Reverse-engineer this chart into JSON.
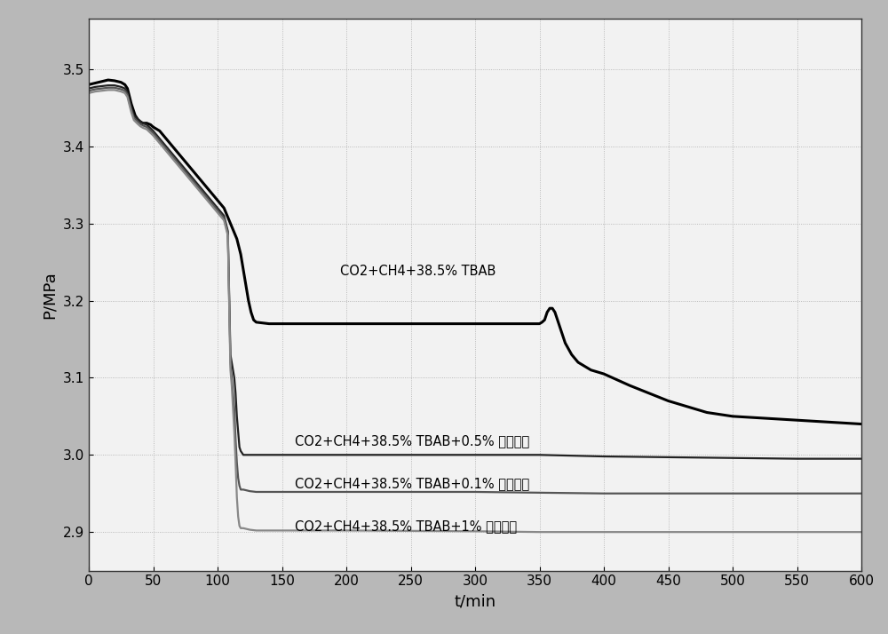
{
  "title": "",
  "xlabel": "t/min",
  "ylabel": "P/MPa",
  "xlim": [
    0,
    600
  ],
  "ylim": [
    2.85,
    3.565
  ],
  "yticks": [
    2.9,
    3.0,
    3.1,
    3.2,
    3.3,
    3.4,
    3.5
  ],
  "xticks": [
    0,
    50,
    100,
    150,
    200,
    250,
    300,
    350,
    400,
    450,
    500,
    550,
    600
  ],
  "fig_bg_color": "#c8c8c8",
  "plot_bg_color": "#f0f0f0",
  "series": [
    {
      "label": "CO2+CH4+38.5% TBAB",
      "color": "#000000",
      "linewidth": 2.2,
      "annotation": "CO2+CH4+38.5% TBAB",
      "ann_x": 195,
      "ann_y": 3.238,
      "points": [
        [
          0,
          3.48
        ],
        [
          5,
          3.482
        ],
        [
          10,
          3.484
        ],
        [
          15,
          3.486
        ],
        [
          20,
          3.485
        ],
        [
          25,
          3.483
        ],
        [
          28,
          3.48
        ],
        [
          30,
          3.475
        ],
        [
          33,
          3.455
        ],
        [
          35,
          3.445
        ],
        [
          36,
          3.44
        ],
        [
          38,
          3.435
        ],
        [
          40,
          3.432
        ],
        [
          42,
          3.43
        ],
        [
          43,
          3.43
        ],
        [
          45,
          3.43
        ],
        [
          48,
          3.428
        ],
        [
          50,
          3.425
        ],
        [
          55,
          3.42
        ],
        [
          60,
          3.41
        ],
        [
          65,
          3.4
        ],
        [
          70,
          3.39
        ],
        [
          75,
          3.38
        ],
        [
          80,
          3.37
        ],
        [
          85,
          3.36
        ],
        [
          90,
          3.35
        ],
        [
          95,
          3.34
        ],
        [
          100,
          3.33
        ],
        [
          105,
          3.32
        ],
        [
          110,
          3.3
        ],
        [
          115,
          3.28
        ],
        [
          118,
          3.26
        ],
        [
          120,
          3.24
        ],
        [
          122,
          3.22
        ],
        [
          124,
          3.2
        ],
        [
          126,
          3.185
        ],
        [
          128,
          3.175
        ],
        [
          130,
          3.172
        ],
        [
          140,
          3.17
        ],
        [
          200,
          3.17
        ],
        [
          300,
          3.17
        ],
        [
          350,
          3.17
        ],
        [
          352,
          3.172
        ],
        [
          354,
          3.175
        ],
        [
          356,
          3.185
        ],
        [
          358,
          3.19
        ],
        [
          360,
          3.19
        ],
        [
          362,
          3.185
        ],
        [
          364,
          3.175
        ],
        [
          366,
          3.165
        ],
        [
          368,
          3.155
        ],
        [
          370,
          3.145
        ],
        [
          375,
          3.13
        ],
        [
          380,
          3.12
        ],
        [
          385,
          3.115
        ],
        [
          390,
          3.11
        ],
        [
          400,
          3.105
        ],
        [
          420,
          3.09
        ],
        [
          450,
          3.07
        ],
        [
          480,
          3.055
        ],
        [
          500,
          3.05
        ],
        [
          550,
          3.045
        ],
        [
          600,
          3.04
        ]
      ]
    },
    {
      "label": "CO2+CH4+38.5% TBAB+0.5% 碳纳米管",
      "color": "#222222",
      "linewidth": 1.6,
      "annotation": "CO2+CH4+38.5% TBAB+0.5% 碳纳米管",
      "ann_x": 160,
      "ann_y": 3.018,
      "points": [
        [
          0,
          3.475
        ],
        [
          5,
          3.477
        ],
        [
          10,
          3.478
        ],
        [
          15,
          3.479
        ],
        [
          20,
          3.479
        ],
        [
          25,
          3.477
        ],
        [
          28,
          3.475
        ],
        [
          30,
          3.47
        ],
        [
          33,
          3.45
        ],
        [
          35,
          3.44
        ],
        [
          38,
          3.435
        ],
        [
          40,
          3.432
        ],
        [
          42,
          3.43
        ],
        [
          45,
          3.428
        ],
        [
          50,
          3.42
        ],
        [
          55,
          3.41
        ],
        [
          60,
          3.4
        ],
        [
          65,
          3.39
        ],
        [
          70,
          3.38
        ],
        [
          75,
          3.37
        ],
        [
          80,
          3.36
        ],
        [
          85,
          3.35
        ],
        [
          90,
          3.34
        ],
        [
          95,
          3.33
        ],
        [
          100,
          3.32
        ],
        [
          105,
          3.31
        ],
        [
          108,
          3.29
        ],
        [
          110,
          3.13
        ],
        [
          111,
          3.12
        ],
        [
          112,
          3.11
        ],
        [
          113,
          3.1
        ],
        [
          114,
          3.08
        ],
        [
          115,
          3.05
        ],
        [
          116,
          3.03
        ],
        [
          117,
          3.01
        ],
        [
          118,
          3.005
        ],
        [
          120,
          3.0
        ],
        [
          125,
          3.0
        ],
        [
          130,
          3.0
        ],
        [
          200,
          3.0
        ],
        [
          300,
          3.0
        ],
        [
          350,
          3.0
        ],
        [
          400,
          2.998
        ],
        [
          450,
          2.997
        ],
        [
          500,
          2.996
        ],
        [
          550,
          2.995
        ],
        [
          600,
          2.995
        ]
      ]
    },
    {
      "label": "CO2+CH4+38.5% TBAB+0.1% 碳纳米管",
      "color": "#555555",
      "linewidth": 1.6,
      "annotation": "CO2+CH4+38.5% TBAB+0.1% 碳纳米管",
      "ann_x": 160,
      "ann_y": 2.963,
      "points": [
        [
          0,
          3.472
        ],
        [
          5,
          3.474
        ],
        [
          10,
          3.475
        ],
        [
          15,
          3.476
        ],
        [
          20,
          3.476
        ],
        [
          25,
          3.474
        ],
        [
          28,
          3.472
        ],
        [
          30,
          3.467
        ],
        [
          33,
          3.447
        ],
        [
          35,
          3.437
        ],
        [
          38,
          3.432
        ],
        [
          40,
          3.429
        ],
        [
          42,
          3.427
        ],
        [
          45,
          3.425
        ],
        [
          50,
          3.417
        ],
        [
          55,
          3.407
        ],
        [
          60,
          3.397
        ],
        [
          65,
          3.387
        ],
        [
          70,
          3.377
        ],
        [
          75,
          3.367
        ],
        [
          80,
          3.357
        ],
        [
          85,
          3.347
        ],
        [
          90,
          3.337
        ],
        [
          95,
          3.327
        ],
        [
          100,
          3.317
        ],
        [
          105,
          3.307
        ],
        [
          108,
          3.287
        ],
        [
          110,
          3.12
        ],
        [
          111,
          3.1
        ],
        [
          112,
          3.08
        ],
        [
          113,
          3.06
        ],
        [
          114,
          3.02
        ],
        [
          115,
          2.99
        ],
        [
          116,
          2.97
        ],
        [
          117,
          2.96
        ],
        [
          118,
          2.955
        ],
        [
          120,
          2.955
        ],
        [
          125,
          2.953
        ],
        [
          130,
          2.952
        ],
        [
          200,
          2.952
        ],
        [
          300,
          2.952
        ],
        [
          350,
          2.951
        ],
        [
          400,
          2.95
        ],
        [
          450,
          2.95
        ],
        [
          500,
          2.95
        ],
        [
          550,
          2.95
        ],
        [
          600,
          2.95
        ]
      ]
    },
    {
      "label": "CO2+CH4+38.5% TBAB+1% 碳纳米管",
      "color": "#888888",
      "linewidth": 1.6,
      "annotation": "CO2+CH4+38.5% TBAB+1% 碳纳米管",
      "ann_x": 160,
      "ann_y": 2.908,
      "points": [
        [
          0,
          3.469
        ],
        [
          5,
          3.471
        ],
        [
          10,
          3.472
        ],
        [
          15,
          3.473
        ],
        [
          20,
          3.473
        ],
        [
          25,
          3.471
        ],
        [
          28,
          3.469
        ],
        [
          30,
          3.464
        ],
        [
          33,
          3.444
        ],
        [
          35,
          3.434
        ],
        [
          38,
          3.429
        ],
        [
          40,
          3.426
        ],
        [
          42,
          3.424
        ],
        [
          45,
          3.422
        ],
        [
          50,
          3.414
        ],
        [
          55,
          3.404
        ],
        [
          60,
          3.394
        ],
        [
          65,
          3.384
        ],
        [
          70,
          3.374
        ],
        [
          75,
          3.364
        ],
        [
          80,
          3.354
        ],
        [
          85,
          3.344
        ],
        [
          90,
          3.334
        ],
        [
          95,
          3.324
        ],
        [
          100,
          3.314
        ],
        [
          105,
          3.304
        ],
        [
          108,
          3.284
        ],
        [
          110,
          3.11
        ],
        [
          111,
          3.09
        ],
        [
          112,
          3.06
        ],
        [
          113,
          3.03
        ],
        [
          114,
          2.99
        ],
        [
          115,
          2.945
        ],
        [
          116,
          2.92
        ],
        [
          117,
          2.908
        ],
        [
          118,
          2.905
        ],
        [
          120,
          2.905
        ],
        [
          125,
          2.903
        ],
        [
          130,
          2.902
        ],
        [
          200,
          2.902
        ],
        [
          300,
          2.901
        ],
        [
          350,
          2.9
        ],
        [
          400,
          2.9
        ],
        [
          450,
          2.9
        ],
        [
          500,
          2.9
        ],
        [
          550,
          2.9
        ],
        [
          600,
          2.9
        ]
      ]
    }
  ]
}
